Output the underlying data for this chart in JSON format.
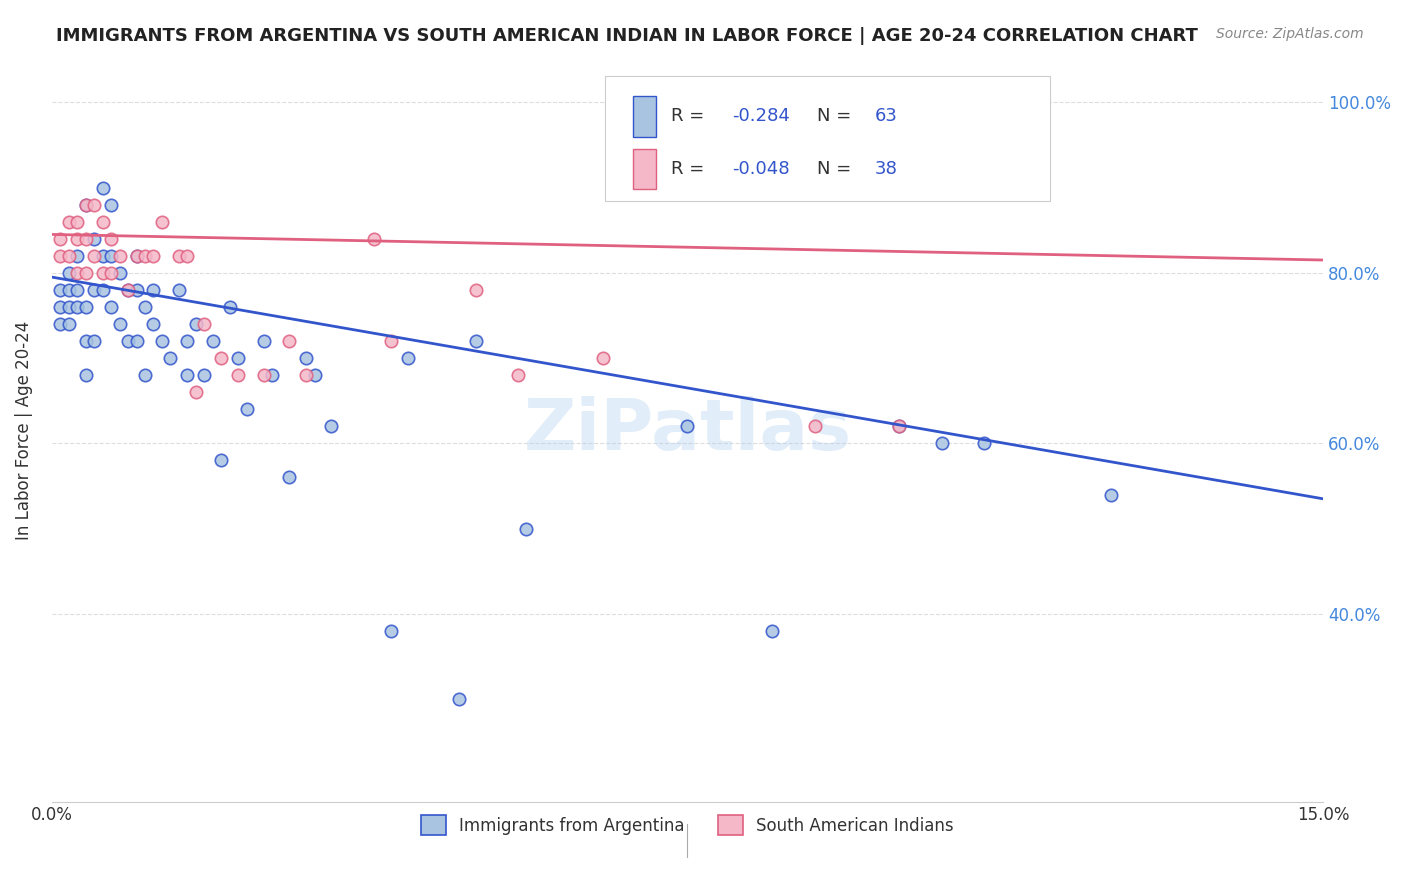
{
  "title": "IMMIGRANTS FROM ARGENTINA VS SOUTH AMERICAN INDIAN IN LABOR FORCE | AGE 20-24 CORRELATION CHART",
  "source": "Source: ZipAtlas.com",
  "ylabel": "In Labor Force | Age 20-24",
  "xmin": 0.0,
  "xmax": 0.15,
  "ymin": 0.18,
  "ymax": 1.05,
  "blue_R": "-0.284",
  "blue_N": "63",
  "pink_R": "-0.048",
  "pink_N": "38",
  "blue_color": "#a8c4e0",
  "pink_color": "#f4b8c8",
  "blue_line_color": "#3355cc",
  "pink_line_color": "#e06080",
  "legend_label_blue": "Immigrants from Argentina",
  "legend_label_pink": "South American Indians",
  "blue_scatter_x": [
    0.001,
    0.001,
    0.001,
    0.002,
    0.002,
    0.002,
    0.002,
    0.003,
    0.003,
    0.003,
    0.004,
    0.004,
    0.004,
    0.004,
    0.005,
    0.005,
    0.005,
    0.006,
    0.006,
    0.006,
    0.007,
    0.007,
    0.007,
    0.008,
    0.008,
    0.009,
    0.009,
    0.01,
    0.01,
    0.01,
    0.011,
    0.011,
    0.012,
    0.012,
    0.013,
    0.014,
    0.015,
    0.016,
    0.016,
    0.017,
    0.018,
    0.019,
    0.02,
    0.021,
    0.022,
    0.023,
    0.025,
    0.026,
    0.028,
    0.03,
    0.031,
    0.033,
    0.04,
    0.042,
    0.048,
    0.05,
    0.056,
    0.075,
    0.085,
    0.1,
    0.105,
    0.11,
    0.125
  ],
  "blue_scatter_y": [
    0.78,
    0.76,
    0.74,
    0.78,
    0.8,
    0.76,
    0.74,
    0.82,
    0.78,
    0.76,
    0.88,
    0.76,
    0.72,
    0.68,
    0.84,
    0.78,
    0.72,
    0.9,
    0.82,
    0.78,
    0.88,
    0.82,
    0.76,
    0.8,
    0.74,
    0.78,
    0.72,
    0.82,
    0.78,
    0.72,
    0.76,
    0.68,
    0.78,
    0.74,
    0.72,
    0.7,
    0.78,
    0.72,
    0.68,
    0.74,
    0.68,
    0.72,
    0.58,
    0.76,
    0.7,
    0.64,
    0.72,
    0.68,
    0.56,
    0.7,
    0.68,
    0.62,
    0.38,
    0.7,
    0.3,
    0.72,
    0.5,
    0.62,
    0.38,
    0.62,
    0.6,
    0.6,
    0.54
  ],
  "pink_scatter_x": [
    0.001,
    0.001,
    0.002,
    0.002,
    0.003,
    0.003,
    0.003,
    0.004,
    0.004,
    0.004,
    0.005,
    0.005,
    0.006,
    0.006,
    0.007,
    0.007,
    0.008,
    0.009,
    0.01,
    0.011,
    0.012,
    0.013,
    0.015,
    0.016,
    0.017,
    0.018,
    0.02,
    0.022,
    0.025,
    0.028,
    0.03,
    0.038,
    0.04,
    0.05,
    0.055,
    0.065,
    0.09,
    0.1
  ],
  "pink_scatter_y": [
    0.84,
    0.82,
    0.86,
    0.82,
    0.86,
    0.84,
    0.8,
    0.88,
    0.84,
    0.8,
    0.88,
    0.82,
    0.86,
    0.8,
    0.84,
    0.8,
    0.82,
    0.78,
    0.82,
    0.82,
    0.82,
    0.86,
    0.82,
    0.82,
    0.66,
    0.74,
    0.7,
    0.68,
    0.68,
    0.72,
    0.68,
    0.84,
    0.72,
    0.78,
    0.68,
    0.7,
    0.62,
    0.62
  ],
  "blue_line_x": [
    0.0,
    0.15
  ],
  "blue_line_y": [
    0.795,
    0.535
  ],
  "pink_line_x": [
    0.0,
    0.15
  ],
  "pink_line_y": [
    0.845,
    0.815
  ],
  "grid_color": "#dddddd",
  "background_color": "#ffffff",
  "ytick_vals": [
    0.4,
    0.6,
    0.8,
    1.0
  ],
  "ytick_labels": [
    "40.0%",
    "60.0%",
    "80.0%",
    "100.0%"
  ]
}
